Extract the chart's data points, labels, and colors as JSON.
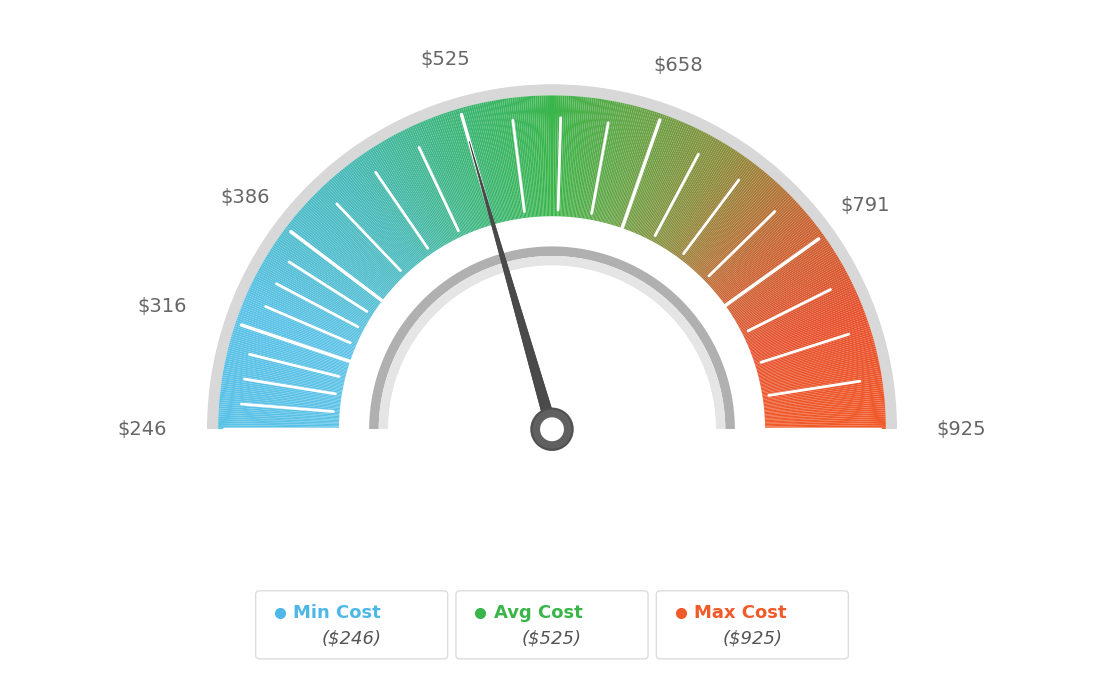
{
  "min_val": 246,
  "max_val": 925,
  "avg_val": 525,
  "needle_value": 525,
  "tick_labels": [
    "$246",
    "$316",
    "$386",
    "$525",
    "$658",
    "$791",
    "$925"
  ],
  "tick_values": [
    246,
    316,
    386,
    525,
    658,
    791,
    925
  ],
  "minor_tick_count": 3,
  "legend": [
    {
      "label": "Min Cost",
      "value": "($246)",
      "color": "#4db8e8"
    },
    {
      "label": "Avg Cost",
      "value": "($525)",
      "color": "#3ab54a"
    },
    {
      "label": "Max Cost",
      "value": "($925)",
      "color": "#f15a29"
    }
  ],
  "color_stops": [
    [
      0.0,
      [
        91,
        194,
        231
      ]
    ],
    [
      0.12,
      [
        91,
        194,
        231
      ]
    ],
    [
      0.28,
      [
        72,
        185,
        185
      ]
    ],
    [
      0.42,
      [
        58,
        181,
        110
      ]
    ],
    [
      0.5,
      [
        58,
        181,
        74
      ]
    ],
    [
      0.58,
      [
        100,
        165,
        70
      ]
    ],
    [
      0.68,
      [
        140,
        140,
        60
      ]
    ],
    [
      0.78,
      [
        200,
        100,
        50
      ]
    ],
    [
      0.88,
      [
        230,
        80,
        45
      ]
    ],
    [
      1.0,
      [
        241,
        90,
        41
      ]
    ]
  ],
  "outer_ring_color": "#d0d0d0",
  "inner_ring_color_dark": "#aaaaaa",
  "inner_ring_color_light": "#e8e8e8",
  "needle_dark": "#4a4a4a",
  "needle_base_outer": "#606060",
  "needle_base_inner": "#ffffff",
  "background_color": "#ffffff",
  "label_color": "#666666",
  "label_fontsize": 14,
  "value_fontsize": 15,
  "legend_label_fontsize": 13,
  "legend_value_fontsize": 13
}
